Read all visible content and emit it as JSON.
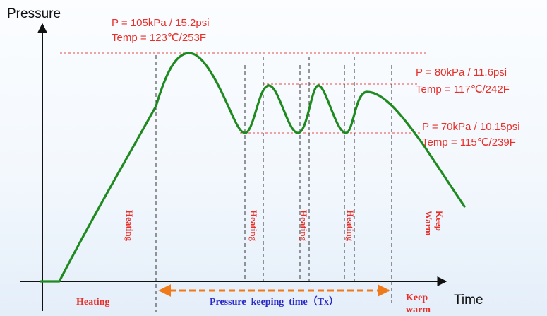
{
  "axes": {
    "y_label": "Pressure",
    "x_label": "Time"
  },
  "annotations": {
    "peak_1": {
      "pressure": "P = 105kPa / 15.2psi",
      "temp": "Temp = 123℃/253F"
    },
    "peak_2": {
      "pressure": "P = 80kPa / 11.6psi",
      "temp": "Temp = 117℃/242F"
    },
    "low": {
      "pressure": "P = 70kPa / 10.15psi",
      "temp": "Temp = 115℃/239F"
    }
  },
  "phase_labels": {
    "heating_1": "Heating",
    "heating_2": "Heating",
    "heating_3": "Heating",
    "heating_4": "Heating",
    "keep_warm_vertical": "Keep Warm"
  },
  "bottom_labels": {
    "heating": "Heating",
    "pressure_keeping": "Pressure  keeping  time（Tx）",
    "keep_warm_line1": "Keep",
    "keep_warm_line2": "warm"
  },
  "colors": {
    "curve": "#1f8a1f",
    "annotation_text": "#e8302a",
    "phase_text": "#e8302a",
    "pressure_keeping_text": "#2a2ac8",
    "arrow": "#f07a1a",
    "guide_red": "#e84a4a",
    "guide_black": "#333333"
  }
}
